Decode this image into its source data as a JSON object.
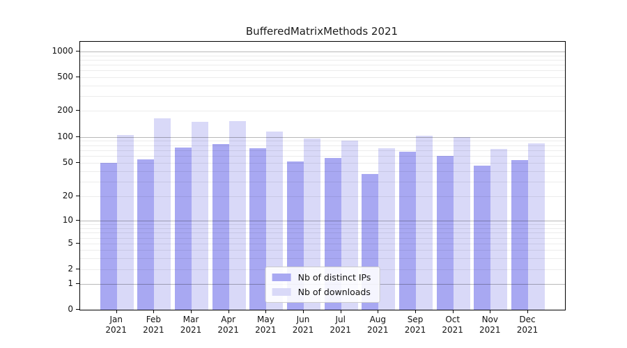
{
  "title": "BufferedMatrixMethods 2021",
  "legend": {
    "items": [
      {
        "label": "Nb of distinct IPs",
        "color": "#a8a8f2"
      },
      {
        "label": "Nb of downloads",
        "color": "#d9d9f8"
      }
    ]
  },
  "chart_data": {
    "type": "bar",
    "title": "BufferedMatrixMethods 2021",
    "categories": [
      "Jan 2021",
      "Feb 2021",
      "Mar 2021",
      "Apr 2021",
      "May 2021",
      "Jun 2021",
      "Jul 2021",
      "Aug 2021",
      "Sep 2021",
      "Oct 2021",
      "Nov 2021",
      "Dec 2021"
    ],
    "series": [
      {
        "name": "Nb of distinct IPs",
        "color": "#a8a8f2",
        "values": [
          50,
          55,
          75,
          83,
          74,
          52,
          57,
          37,
          67,
          60,
          46,
          54
        ]
      },
      {
        "name": "Nb of downloads",
        "color": "#d9d9f8",
        "values": [
          105,
          165,
          150,
          152,
          115,
          96,
          91,
          74,
          104,
          99,
          72,
          84
        ]
      }
    ],
    "xlabel": "",
    "ylabel": "",
    "yscale": "log-like",
    "yticks": [
      0,
      1,
      2,
      5,
      10,
      20,
      50,
      100,
      200,
      500,
      1000
    ],
    "ylim": [
      0,
      1000
    ],
    "grid": "horizontal",
    "legend_position": "lower center"
  }
}
